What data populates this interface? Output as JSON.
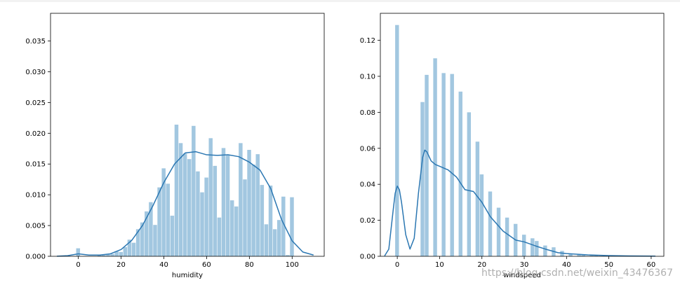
{
  "chart_data": [
    {
      "type": "bar",
      "subtype": "histogram_with_kde",
      "xlabel": "humidity",
      "ylabel": "",
      "xlim": [
        -13,
        115
      ],
      "ylim": [
        0,
        0.0395
      ],
      "xticks": [
        0,
        20,
        40,
        60,
        80,
        100
      ],
      "yticks": [
        "0.000",
        "0.005",
        "0.010",
        "0.015",
        "0.020",
        "0.025",
        "0.030",
        "0.035"
      ],
      "bar_color": "#a2c7e0",
      "line_color": "#2b77b2",
      "bin_width": 2,
      "bins": [
        [
          0,
          0.0013
        ],
        [
          10,
          0.0002
        ],
        [
          12,
          0.0002
        ],
        [
          14,
          0.0003
        ],
        [
          16,
          0.0004
        ],
        [
          18,
          0.0008
        ],
        [
          20,
          0.0007
        ],
        [
          22,
          0.0015
        ],
        [
          24,
          0.0027
        ],
        [
          26,
          0.0022
        ],
        [
          28,
          0.0044
        ],
        [
          30,
          0.0055
        ],
        [
          32,
          0.0073
        ],
        [
          34,
          0.0088
        ],
        [
          36,
          0.0051
        ],
        [
          38,
          0.0112
        ],
        [
          40,
          0.0143
        ],
        [
          42,
          0.0118
        ],
        [
          44,
          0.0066
        ],
        [
          46,
          0.0214
        ],
        [
          48,
          0.0184
        ],
        [
          50,
          0.0167
        ],
        [
          52,
          0.0158
        ],
        [
          54,
          0.0212
        ],
        [
          56,
          0.0138
        ],
        [
          58,
          0.0104
        ],
        [
          60,
          0.0128
        ],
        [
          62,
          0.0192
        ],
        [
          64,
          0.0147
        ],
        [
          66,
          0.0063
        ],
        [
          68,
          0.0176
        ],
        [
          70,
          0.0164
        ],
        [
          72,
          0.0091
        ],
        [
          74,
          0.0081
        ],
        [
          76,
          0.0184
        ],
        [
          78,
          0.0125
        ],
        [
          80,
          0.0173
        ],
        [
          82,
          0.0149
        ],
        [
          84,
          0.0166
        ],
        [
          86,
          0.0116
        ],
        [
          88,
          0.0052
        ],
        [
          90,
          0.0115
        ],
        [
          92,
          0.0044
        ],
        [
          94,
          0.0059
        ],
        [
          96,
          0.0097
        ],
        [
          98,
          0.0002
        ],
        [
          100,
          0.0096
        ]
      ],
      "kde": {
        "x": [
          -10,
          -5,
          0,
          5,
          10,
          15,
          20,
          25,
          30,
          35,
          40,
          45,
          50,
          55,
          60,
          65,
          70,
          75,
          80,
          85,
          90,
          95,
          100,
          105,
          110
        ],
        "y": [
          2e-05,
          0.0001,
          0.0004,
          0.0002,
          0.0002,
          0.0004,
          0.0011,
          0.0026,
          0.005,
          0.0083,
          0.012,
          0.015,
          0.0168,
          0.017,
          0.0165,
          0.0164,
          0.0165,
          0.0162,
          0.0153,
          0.014,
          0.011,
          0.006,
          0.0025,
          0.0007,
          0.0002
        ]
      }
    },
    {
      "type": "bar",
      "subtype": "histogram_with_kde",
      "xlabel": "windspeed",
      "ylabel": "",
      "xlim": [
        -4,
        63
      ],
      "ylim": [
        0,
        0.135
      ],
      "xticks": [
        0,
        10,
        20,
        30,
        40,
        50,
        60
      ],
      "yticks": [
        "0.00",
        "0.02",
        "0.04",
        "0.06",
        "0.08",
        "0.10",
        "0.12"
      ],
      "bar_color": "#a2c7e0",
      "line_color": "#2b77b2",
      "bin_width": 1.0,
      "bins": [
        [
          0,
          0.1285
        ],
        [
          6,
          0.0857
        ],
        [
          7,
          0.1008
        ],
        [
          9,
          0.11
        ],
        [
          11,
          0.1018
        ],
        [
          13,
          0.1013
        ],
        [
          15,
          0.0915
        ],
        [
          17,
          0.08
        ],
        [
          19,
          0.0637
        ],
        [
          20,
          0.0455
        ],
        [
          22,
          0.036
        ],
        [
          24,
          0.027
        ],
        [
          26,
          0.0215
        ],
        [
          28,
          0.018
        ],
        [
          30,
          0.012
        ],
        [
          32,
          0.01
        ],
        [
          33,
          0.0085
        ],
        [
          35,
          0.006
        ],
        [
          37,
          0.005
        ],
        [
          39,
          0.003
        ],
        [
          41,
          0.0015
        ],
        [
          43,
          0.001
        ],
        [
          44,
          0.0007
        ],
        [
          46,
          0.0005
        ],
        [
          47,
          0.0004
        ],
        [
          51,
          0.0002
        ],
        [
          56,
          0.0002
        ]
      ],
      "kde": {
        "x": [
          -3,
          -2,
          -1,
          -0.5,
          0,
          0.5,
          1,
          2,
          3,
          4,
          5,
          6,
          6.5,
          7,
          8,
          9,
          10,
          12,
          14,
          16,
          18,
          20,
          22,
          25,
          28,
          30,
          33,
          35,
          38,
          40,
          45,
          50,
          55,
          61
        ],
        "y": [
          0.0002,
          0.004,
          0.025,
          0.035,
          0.039,
          0.037,
          0.03,
          0.012,
          0.004,
          0.01,
          0.035,
          0.055,
          0.059,
          0.058,
          0.053,
          0.051,
          0.05,
          0.048,
          0.044,
          0.037,
          0.036,
          0.03,
          0.022,
          0.014,
          0.009,
          0.008,
          0.0055,
          0.004,
          0.002,
          0.0015,
          0.0008,
          0.0004,
          0.0002,
          0.0001
        ]
      }
    }
  ],
  "watermark": "https://blog.csdn.net/weixin_43476367"
}
